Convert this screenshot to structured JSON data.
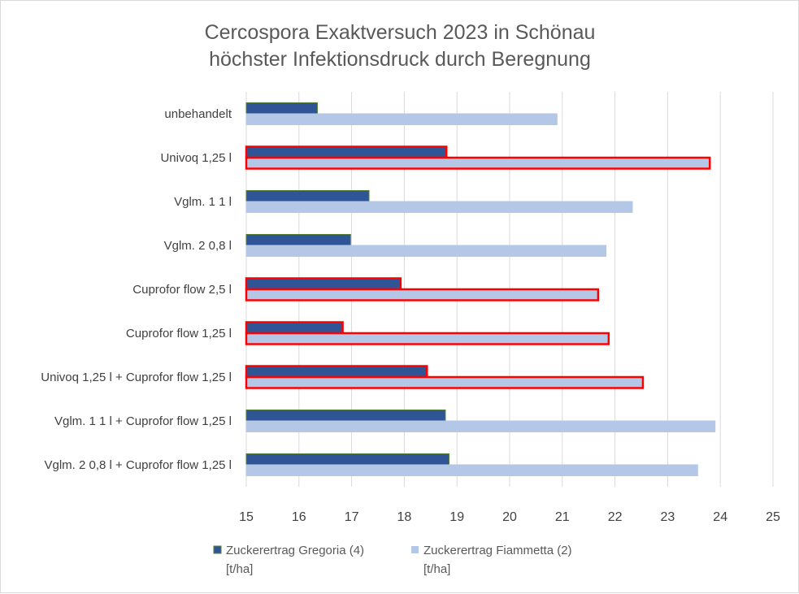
{
  "chart_data": {
    "type": "bar",
    "orientation": "horizontal",
    "title_lines": [
      "Cercospora Exaktversuch 2023 in Schönau",
      "höchster Infektionsdruck durch Beregnung"
    ],
    "categories": [
      "unbehandelt",
      "Univoq 1,25 l",
      "Vglm. 1 1 l",
      "Vglm. 2 0,8 l",
      "Cuprofor flow 2,5 l",
      "Cuprofor flow 1,25 l",
      "Univoq 1,25 l + Cuprofor flow 1,25 l",
      "Vglm. 1 1 l + Cuprofor flow 1,25 l",
      "Vglm. 2 0,8 l + Cuprofor flow 1,25 l"
    ],
    "highlighted": [
      false,
      true,
      false,
      false,
      true,
      true,
      true,
      false,
      false
    ],
    "series": [
      {
        "name_lines": [
          "Zuckerertrag Gregoria (4)",
          "[t/ha]"
        ],
        "color": "#2f5597",
        "border": "#548235",
        "values": [
          16.35,
          18.8,
          17.33,
          16.98,
          17.93,
          16.83,
          18.43,
          18.78,
          18.85
        ]
      },
      {
        "name_lines": [
          "Zuckerertrag Fiammetta (2)",
          "[t/ha]"
        ],
        "color": "#b4c7e7",
        "border": "#b4c7e7",
        "values": [
          20.9,
          23.8,
          22.33,
          21.83,
          21.68,
          21.88,
          22.53,
          23.9,
          23.57
        ]
      }
    ],
    "xlim": [
      15,
      25
    ],
    "xticks": [
      15,
      16,
      17,
      18,
      19,
      20,
      21,
      22,
      23,
      24,
      25
    ],
    "grid": true,
    "legend_position": "bottom",
    "highlight_border_color": "#ff0000"
  }
}
